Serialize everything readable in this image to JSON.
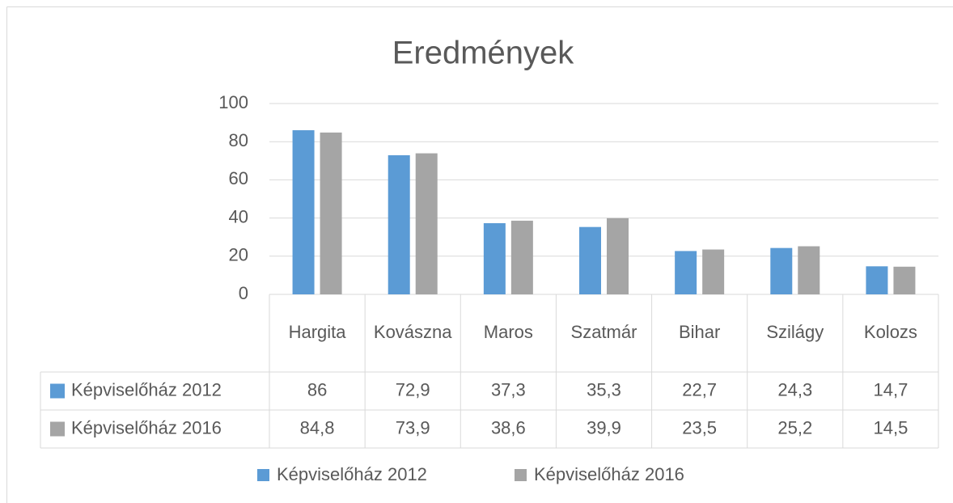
{
  "chart_data": {
    "type": "bar",
    "title": "Eredmények",
    "categories": [
      "Hargita",
      "Kovászna",
      "Maros",
      "Szatmár",
      "Bihar",
      "Szilágy",
      "Kolozs"
    ],
    "series": [
      {
        "name": "Képviselőház 2012",
        "color": "#5b9bd5",
        "values": [
          86,
          72.9,
          37.3,
          35.3,
          22.7,
          24.3,
          14.7
        ],
        "value_labels": [
          "86",
          "72,9",
          "37,3",
          "35,3",
          "22,7",
          "24,3",
          "14,7"
        ]
      },
      {
        "name": "Képviselőház 2016",
        "color": "#a5a5a5",
        "values": [
          84.8,
          73.9,
          38.6,
          39.9,
          23.5,
          25.2,
          14.5
        ],
        "value_labels": [
          "84,8",
          "73,9",
          "38,6",
          "39,9",
          "23,5",
          "25,2",
          "14,5"
        ]
      }
    ],
    "ylim": [
      0,
      100
    ],
    "yticks": [
      0,
      20,
      40,
      60,
      80,
      100
    ],
    "grid": true,
    "legend": "bottom",
    "data_table": true
  }
}
